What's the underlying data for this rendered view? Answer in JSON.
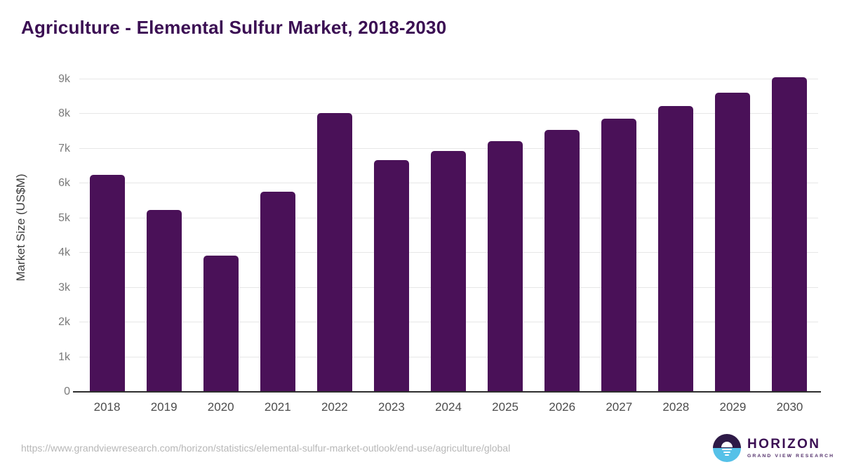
{
  "title": "Agriculture - Elemental Sulfur Market, 2018-2030",
  "chart_data": {
    "type": "bar",
    "title": "Agriculture - Elemental Sulfur Market, 2018-2030",
    "categories": [
      "2018",
      "2019",
      "2020",
      "2021",
      "2022",
      "2023",
      "2024",
      "2025",
      "2026",
      "2027",
      "2028",
      "2029",
      "2030"
    ],
    "values": [
      6240,
      5240,
      3930,
      5760,
      8030,
      6670,
      6940,
      7220,
      7550,
      7870,
      8230,
      8620,
      9060
    ],
    "xlabel": "",
    "ylabel": "Market Size (US$M)",
    "ylim": [
      0,
      9000
    ],
    "ytick_step": 1000,
    "yticks": [
      "0",
      "1k",
      "2k",
      "3k",
      "4k",
      "5k",
      "6k",
      "7k",
      "8k",
      "9k"
    ],
    "grid": true,
    "legend": "none",
    "bar_color": "#4a1158"
  },
  "footer": {
    "source_url": "https://www.grandviewresearch.com/horizon/statistics/elemental-sulfur-market-outlook/end-use/agriculture/global",
    "logo_name": "HORIZON",
    "logo_subtitle": "GRAND VIEW RESEARCH"
  },
  "colors": {
    "bar": "#4a1158",
    "title_text": "#3b0f53",
    "gridline": "#e7e7e7",
    "axis_line": "#2e2e2e",
    "y_tick_text": "#7a7a7a",
    "x_tick_text": "#4c4c4c",
    "url_text": "#b7b7b7",
    "logo_blue": "#56c1e8",
    "logo_dark": "#2e1a47"
  }
}
